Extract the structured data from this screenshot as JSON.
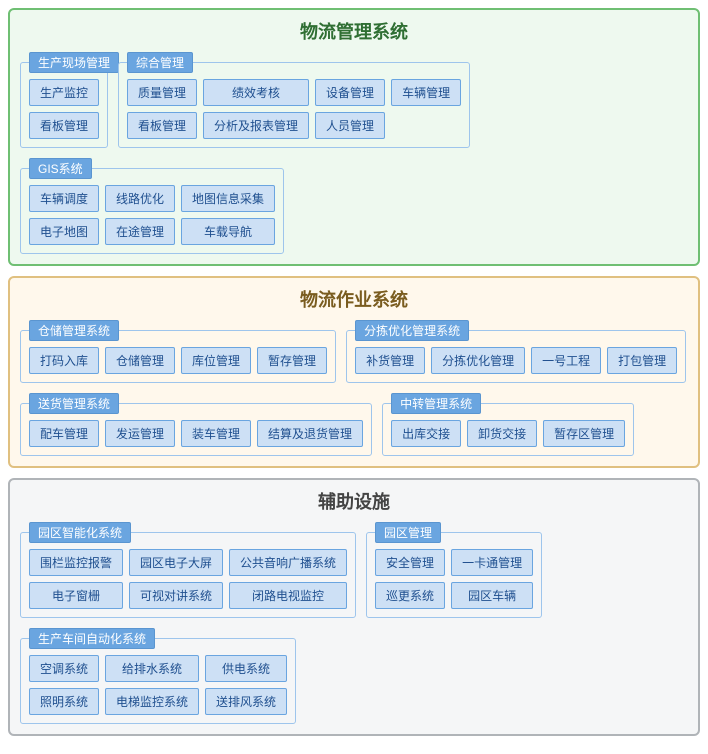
{
  "colors": {
    "item_bg": "#cde0f5",
    "item_border": "#6aa5e0",
    "item_text": "#1f4f8f",
    "group_border": "#9ec5ec",
    "group_label_bg": "#6aa5e0",
    "group_label_text": "#ffffff",
    "group_label_border": "#5a95d0"
  },
  "typography": {
    "section_title_fontsize": 18,
    "group_label_fontsize": 12,
    "item_fontsize": 12
  },
  "sections": [
    {
      "title": "物流管理系统",
      "bg": "#eef9ef",
      "border": "#6fbf73",
      "title_color": "#2f6f33",
      "groups": [
        {
          "label": "生产现场管理",
          "layout": "col",
          "items": [
            "生产监控",
            "看板管理"
          ]
        },
        {
          "label": "综合管理",
          "layout": "grid",
          "max_per_row": 4,
          "items": [
            "质量管理",
            "绩效考核",
            "设备管理",
            "车辆管理",
            "看板管理",
            "分析及报表管理",
            "人员管理"
          ]
        },
        {
          "label": "GIS系统",
          "layout": "grid",
          "max_per_row": 3,
          "items": [
            "车辆调度",
            "线路优化",
            "地图信息采集",
            "电子地图",
            "在途管理",
            "车载导航"
          ]
        }
      ]
    },
    {
      "title": "物流作业系统",
      "bg": "#fff8ec",
      "border": "#e0c080",
      "title_color": "#7a5c1f",
      "groups": [
        {
          "label": "仓储管理系统",
          "layout": "row",
          "items": [
            "打码入库",
            "仓储管理",
            "库位管理",
            "暂存管理"
          ]
        },
        {
          "label": "分拣优化管理系统",
          "layout": "row",
          "items": [
            "补货管理",
            "分拣优化管理",
            "一号工程",
            "打包管理"
          ]
        },
        {
          "label": "送货管理系统",
          "layout": "row",
          "items": [
            "配车管理",
            "发运管理",
            "装车管理",
            "结算及退货管理"
          ]
        },
        {
          "label": "中转管理系统",
          "layout": "row",
          "items": [
            "出库交接",
            "卸货交接",
            "暂存区管理"
          ]
        }
      ]
    },
    {
      "title": "辅助设施",
      "bg": "#f5f6f7",
      "border": "#b0b4b8",
      "title_color": "#444444",
      "groups": [
        {
          "label": "园区智能化系统",
          "layout": "grid",
          "max_per_row": 3,
          "items": [
            "围栏监控报警",
            "园区电子大屏",
            "公共音响广播系统",
            "电子窗栅",
            "可视对讲系统",
            "闭路电视监控"
          ]
        },
        {
          "label": "园区管理",
          "layout": "grid",
          "max_per_row": 2,
          "items": [
            "安全管理",
            "一卡通管理",
            "巡更系统",
            "园区车辆"
          ]
        },
        {
          "label": "生产车间自动化系统",
          "layout": "grid",
          "max_per_row": 3,
          "items": [
            "空调系统",
            "给排水系统",
            "供电系统",
            "照明系统",
            "电梯监控系统",
            "送排风系统"
          ]
        }
      ]
    }
  ]
}
